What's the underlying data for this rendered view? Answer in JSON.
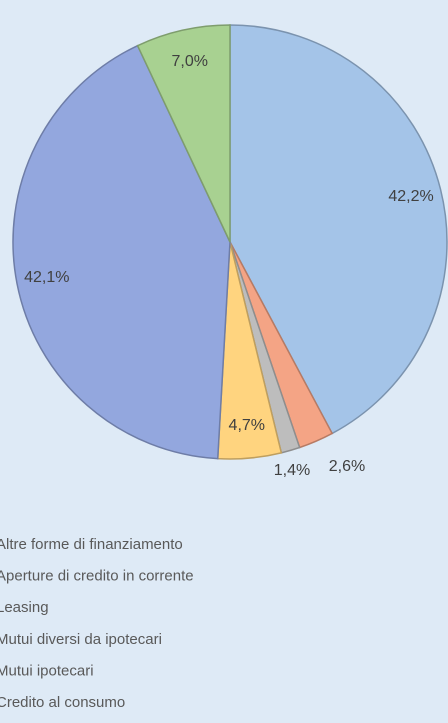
{
  "chart_data": {
    "type": "pie",
    "categories": [
      "Altre forme di finanziamento",
      "Aperture di credito in corrente",
      "Leasing",
      "Mutui diversi da ipotecari",
      "Mutui ipotecari",
      "Credito al consumo"
    ],
    "values": [
      42.2,
      2.6,
      1.4,
      4.7,
      42.1,
      7.0
    ],
    "value_labels": [
      "42,2%",
      "2,6%",
      "1,4%",
      "4,7%",
      "42,1%",
      "7,0%"
    ],
    "colors": [
      "#a4c4e8",
      "#f4a485",
      "#bdbdbd",
      "#ffd47f",
      "#93a7de",
      "#a8d191"
    ],
    "legend": "bottom"
  }
}
